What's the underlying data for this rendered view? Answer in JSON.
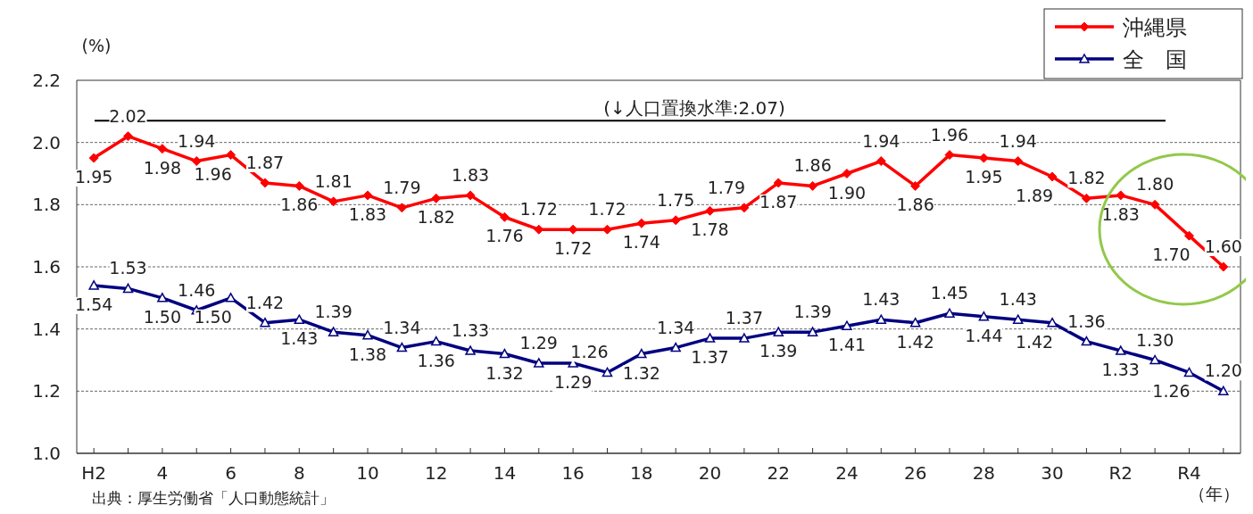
{
  "chart_data": {
    "type": "line",
    "ylabel": "(%)",
    "xlabel": "（年）",
    "categories": [
      "H2",
      null,
      "4",
      null,
      "6",
      null,
      "8",
      null,
      "10",
      null,
      "12",
      null,
      "14",
      null,
      "16",
      null,
      "18",
      null,
      "20",
      null,
      "22",
      null,
      "24",
      null,
      "26",
      null,
      "28",
      null,
      "30",
      null,
      "R2",
      null,
      "R4",
      null
    ],
    "series": [
      {
        "name": "沖縄県",
        "color": "#ff0000",
        "marker": "diamond",
        "values": [
          1.95,
          2.02,
          1.98,
          1.94,
          1.96,
          1.87,
          1.86,
          1.81,
          1.83,
          1.79,
          1.82,
          1.83,
          1.76,
          1.72,
          1.72,
          1.72,
          1.74,
          1.75,
          1.78,
          1.79,
          1.87,
          1.86,
          1.9,
          1.94,
          1.86,
          1.96,
          1.95,
          1.94,
          1.89,
          1.82,
          1.83,
          1.8,
          1.7,
          1.6
        ],
        "value_labels": [
          "1.95",
          "2.02",
          "1.98",
          "1.94",
          "1.96",
          "1.87",
          "1.86",
          "1.81",
          "1.83",
          "1.79",
          "1.82",
          "1.83",
          "1.76",
          "1.72",
          "1.72",
          "1.72",
          "1.74",
          "1.75",
          "1.78",
          "1.79",
          "1.87",
          "1.86",
          "1.90",
          "1.94",
          "1.86",
          "1.96",
          "1.95",
          "1.94",
          "1.89",
          "1.82",
          "1.83",
          "1.80",
          "1.70",
          "1.60"
        ]
      },
      {
        "name": "全　国",
        "color": "#000080",
        "marker": "triangle",
        "values": [
          1.54,
          1.53,
          1.5,
          1.46,
          1.5,
          1.42,
          1.43,
          1.39,
          1.38,
          1.34,
          1.36,
          1.33,
          1.32,
          1.29,
          1.29,
          1.26,
          1.32,
          1.34,
          1.37,
          1.37,
          1.39,
          1.39,
          1.41,
          1.43,
          1.42,
          1.45,
          1.44,
          1.43,
          1.42,
          1.36,
          1.33,
          1.3,
          1.26,
          1.2
        ],
        "value_labels": [
          "1.54",
          "1.53",
          "1.50",
          "1.46",
          "1.50",
          "1.42",
          "1.43",
          "1.39",
          "1.38",
          "1.34",
          "1.36",
          "1.33",
          "1.32",
          "1.29",
          "1.29",
          "1.26",
          "1.32",
          "1.34",
          "1.37",
          "1.37",
          "1.39",
          "1.39",
          "1.41",
          "1.43",
          "1.42",
          "1.45",
          "1.44",
          "1.43",
          "1.42",
          "1.36",
          "1.33",
          "1.30",
          "1.26",
          "1.20"
        ]
      }
    ],
    "ylim": [
      1.0,
      2.2
    ],
    "yticks": [
      {
        "value": 1.0,
        "label": "1.0"
      },
      {
        "value": 1.2,
        "label": "1.2"
      },
      {
        "value": 1.4,
        "label": "1.4"
      },
      {
        "value": 1.6,
        "label": "1.6"
      },
      {
        "value": 1.8,
        "label": "1.8"
      },
      {
        "value": 2.0,
        "label": "2.0"
      },
      {
        "value": 2.2,
        "label": "2.2"
      }
    ],
    "grid": "y",
    "legend": "top right",
    "line_style": "solid",
    "ref_lines": [
      {
        "axis": "y",
        "value": 2.07,
        "label": "(↓人口置換水準:2.07)",
        "color": "#000000"
      }
    ],
    "annotations": [
      "出典：厚生労働省「人口動態統計」"
    ]
  }
}
